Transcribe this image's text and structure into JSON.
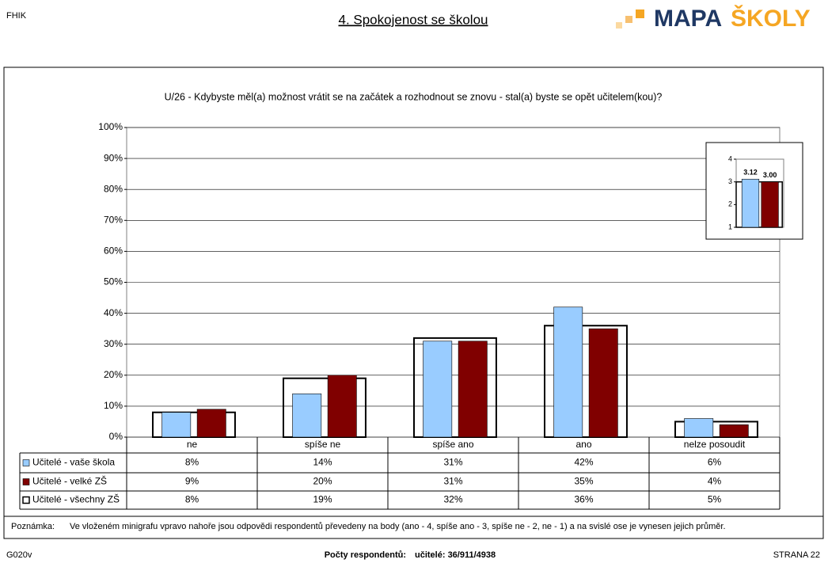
{
  "header": {
    "code": "FHIK",
    "title": "4. Spokojenost se školou",
    "logo": [
      "MAPA",
      "ŠKOLY"
    ]
  },
  "chart_data": [
    {
      "type": "bar",
      "title": "U/26 - Kdybyste měl(a) možnost vrátit se na začátek a rozhodnout se znovu - stal(a) byste se opět učitelem(kou)?",
      "categories": [
        "ne",
        "spíše ne",
        "spíše ano",
        "ano",
        "nelze posoudit"
      ],
      "series": [
        {
          "name": "Učitelé - vaše škola",
          "color": "#99ccff",
          "values": [
            8,
            14,
            31,
            42,
            6
          ],
          "value_labels": [
            "8%",
            "14%",
            "31%",
            "42%",
            "6%"
          ]
        },
        {
          "name": "Učitelé - velké ZŠ",
          "color": "#800000",
          "values": [
            9,
            20,
            31,
            35,
            4
          ],
          "value_labels": [
            "9%",
            "20%",
            "31%",
            "35%",
            "4%"
          ]
        },
        {
          "name": "Učitelé - všechny ZŠ",
          "color": "#ffffff",
          "values": [
            8,
            19,
            32,
            36,
            5
          ],
          "value_labels": [
            "8%",
            "19%",
            "32%",
            "36%",
            "5%"
          ]
        }
      ],
      "ylim": [
        0,
        100
      ],
      "yticks": [
        {
          "value": 0,
          "label": "0%"
        },
        {
          "value": 10,
          "label": "10%"
        },
        {
          "value": 20,
          "label": "20%"
        },
        {
          "value": 30,
          "label": "30%"
        },
        {
          "value": 40,
          "label": "40%"
        },
        {
          "value": 50,
          "label": "50%"
        },
        {
          "value": 60,
          "label": "60%"
        },
        {
          "value": 70,
          "label": "70%"
        },
        {
          "value": 80,
          "label": "80%"
        },
        {
          "value": 90,
          "label": "90%"
        },
        {
          "value": 100,
          "label": "100%"
        }
      ],
      "grid": true
    },
    {
      "type": "bar",
      "categories": [
        null
      ],
      "series": [
        {
          "color": "#99ccff",
          "values": [
            3.12
          ],
          "value_labels": [
            "3.12"
          ]
        },
        {
          "color": "#800000",
          "values": [
            3
          ],
          "value_labels": [
            "3.00"
          ]
        },
        {
          "color": "#ffffff",
          "values": [
            3
          ]
        }
      ],
      "ylim": [
        1,
        4
      ],
      "yticks": [
        1,
        2,
        3,
        4
      ]
    }
  ],
  "note": {
    "label": "Poznámka:",
    "text": "Ve vloženém minigrafu vpravo nahoře jsou odpovědi respondentů převedeny na body (ano - 4, spíše ano - 3, spíše ne - 2, ne - 1) a na svislé ose je vynesen jejich průměr."
  },
  "footer": {
    "code": "G020v",
    "respondents_label": "Počty respondentů:",
    "respondents": "učitelé: 36/911/4938",
    "page": "STRANA 22"
  }
}
